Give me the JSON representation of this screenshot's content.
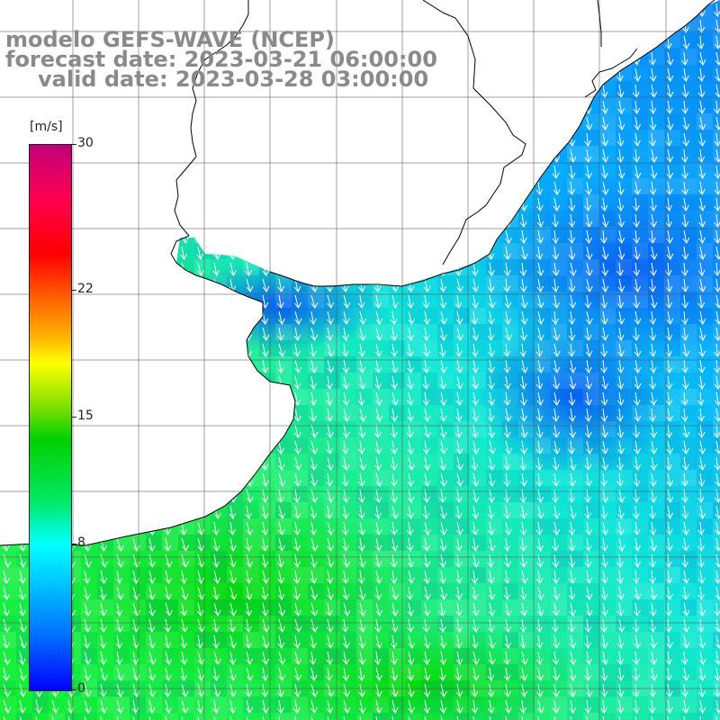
{
  "title": {
    "line1": "modelo GEFS-WAVE (NCEP)",
    "line2": "forecast date: 2023-03-21 06:00:00",
    "line3": "valid date: 2023-03-28 03:00:00"
  },
  "colorbar": {
    "unit": "[m/s]",
    "min": 0,
    "max": 30,
    "ticks": [
      {
        "value": 30,
        "label": "30"
      },
      {
        "value": 22,
        "label": "22"
      },
      {
        "value": 15,
        "label": "15"
      },
      {
        "value": 8,
        "label": "8"
      },
      {
        "value": 0,
        "label": "0"
      }
    ]
  },
  "colors": {
    "land": "#ffffff",
    "coast": "#000000",
    "grid": "#555555",
    "arrow": "#ffffff",
    "title": "#8a8a8a"
  },
  "wind_field": {
    "typical_speed_ms": [
      5,
      12
    ],
    "dominant_direction": "toward south-southwest",
    "strongest_region": "south-west (green, ~11-12 m/s)",
    "weakest_region": "north-east off the coast (blue, ~5-6 m/s)"
  }
}
